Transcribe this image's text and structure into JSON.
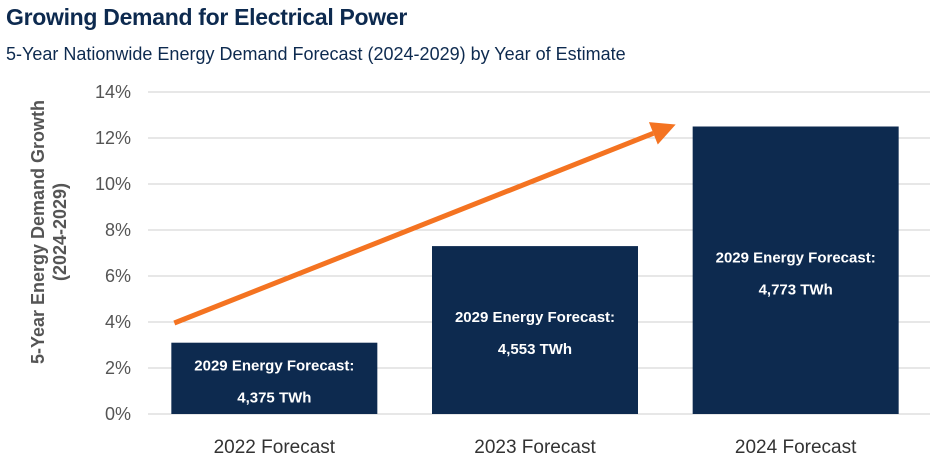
{
  "chart_data": {
    "type": "bar",
    "title": "Growing Demand for Electrical Power",
    "subtitle": "5-Year Nationwide Energy Demand Forecast (2024-2029) by Year of Estimate",
    "ylabel_lines": [
      "5-Year Energy Demand Growth",
      "(2024-2029)"
    ],
    "xlabel": "",
    "categories": [
      "2022 Forecast",
      "2023 Forecast",
      "2024 Forecast"
    ],
    "values": [
      3.1,
      7.3,
      12.5
    ],
    "ylim": [
      0,
      14
    ],
    "yticks": [
      0,
      2,
      4,
      6,
      8,
      10,
      12,
      14
    ],
    "ytick_labels": [
      "0%",
      "2%",
      "4%",
      "6%",
      "8%",
      "10%",
      "12%",
      "14%"
    ],
    "bar_label_title": "2029 Energy Forecast:",
    "bar_label_values": [
      "4,375 TWh",
      "4,553 TWh",
      "4,773 TWh"
    ],
    "bar_color": "#0d2a4f",
    "arrow_color": "#f47321",
    "grid": true
  }
}
